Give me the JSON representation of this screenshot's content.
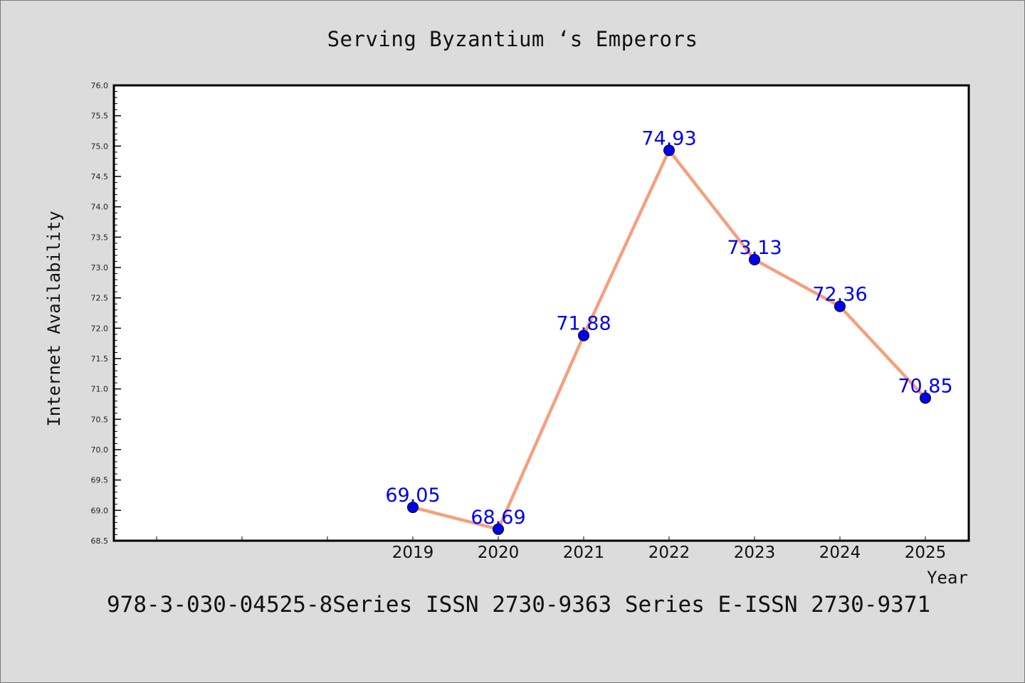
{
  "chart_data": {
    "type": "line",
    "title": "Serving Byzantium ‘s Emperors",
    "xlabel": "Year",
    "ylabel": "Internet Availability",
    "categories": [
      "2019",
      "2020",
      "2021",
      "2022",
      "2023",
      "2024",
      "2025"
    ],
    "series": [
      {
        "values": [
          69.05,
          68.69,
          71.88,
          74.93,
          73.13,
          72.36,
          70.85
        ],
        "line_color": "#f4a07e",
        "marker_color": "#0000ee"
      }
    ],
    "data_labels": [
      "69.05",
      "68.69",
      "71.88",
      "74.93",
      "73.13",
      "72.36",
      "70.85"
    ],
    "ylim": [
      68.5,
      76.0
    ],
    "yticks": [
      "68.5",
      "69.0",
      "69.5",
      "70.0",
      "70.5",
      "71.0",
      "71.5",
      "72.0",
      "72.5",
      "73.0",
      "73.5",
      "74.0",
      "74.5",
      "75.0",
      "75.5",
      "76.0"
    ],
    "grid": false,
    "data_label_color": "#0000ee"
  },
  "footer": {
    "text": "978-3-030-04525-8Series ISSN 2730-9363 Series E-ISSN 2730-9371"
  }
}
